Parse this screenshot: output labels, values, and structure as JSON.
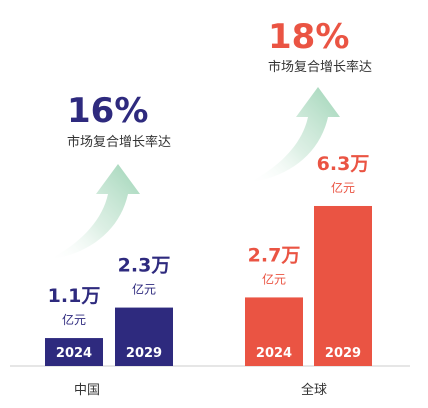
{
  "colors": {
    "china": "#2e2a7e",
    "global": "#ea5443",
    "arrow": "#a8d8be",
    "axis": "#d7d7d7",
    "label": "#333333",
    "bar_text": "#ffffff"
  },
  "chart_data": {
    "type": "bar",
    "groups": [
      {
        "name": "中国",
        "color_key": "china",
        "growth_value": "16%",
        "growth_label": "市场复合增长率达",
        "bars": [
          {
            "year": "2024",
            "value": 1.1,
            "value_label": "1.1万",
            "unit": "亿元"
          },
          {
            "year": "2029",
            "value": 2.3,
            "value_label": "2.3万",
            "unit": "亿元"
          }
        ]
      },
      {
        "name": "全球",
        "color_key": "global",
        "growth_value": "18%",
        "growth_label": "市场复合增长率达",
        "bars": [
          {
            "year": "2024",
            "value": 2.7,
            "value_label": "2.7万",
            "unit": "亿元"
          },
          {
            "year": "2029",
            "value": 6.3,
            "value_label": "6.3万",
            "unit": "亿元"
          }
        ]
      }
    ],
    "grid": false
  }
}
